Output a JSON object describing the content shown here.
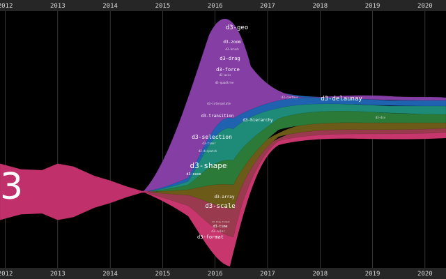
{
  "chart_data": {
    "type": "area",
    "subtype": "streamgraph",
    "x_ticks": [
      "2012",
      "2013",
      "2014",
      "2015",
      "2016",
      "2017",
      "2018",
      "2019",
      "2020"
    ],
    "xlim": [
      2011.9,
      2020.4
    ],
    "grid": true,
    "background": "#000000",
    "legend": "none",
    "series": [
      {
        "name": "d3",
        "color": "#c0306a",
        "labeled": true,
        "x": [
          2011.9,
          2012.3,
          2012.7,
          2013.0,
          2013.3,
          2013.7,
          2014.0,
          2014.3,
          2014.6,
          2014.9
        ],
        "values": [
          30,
          24,
          23,
          30,
          27,
          17,
          12,
          6,
          1,
          0
        ]
      },
      {
        "name": "d3-format",
        "color": "#c83a72",
        "labeled": true,
        "x": [],
        "values": []
      },
      {
        "name": "d3-scale",
        "color": "#a83a52",
        "labeled": true,
        "x": [],
        "values": []
      },
      {
        "name": "d3-time",
        "color": "#8e2a38",
        "labeled": true,
        "x": [],
        "values": []
      },
      {
        "name": "d3-array",
        "color": "#7a4a22",
        "labeled": true,
        "x": [],
        "values": []
      },
      {
        "name": "d3-shape",
        "color": "#6e5a1c",
        "labeled": true,
        "x": [],
        "values": []
      },
      {
        "name": "d3-selection",
        "color": "#2a7a3a",
        "labeled": true,
        "x": [],
        "values": []
      },
      {
        "name": "d3-transition",
        "color": "#1f8a78",
        "labeled": true,
        "x": [],
        "values": []
      },
      {
        "name": "d3-hierarchy",
        "color": "#17706a",
        "labeled": true,
        "x": [],
        "values": []
      },
      {
        "name": "d3-force",
        "color": "#1e6aa8",
        "labeled": true,
        "x": [],
        "values": []
      },
      {
        "name": "d3-drag",
        "color": "#2a5ec0",
        "labeled": true,
        "x": [],
        "values": []
      },
      {
        "name": "d3-zoom",
        "color": "#3b4fc8",
        "labeled": true,
        "x": [],
        "values": []
      },
      {
        "name": "d3-delaunay",
        "color": "#7a3c98",
        "labeled": true,
        "x": [],
        "values": []
      },
      {
        "name": "d3-geo",
        "color": "#8a3ea6",
        "labeled": true,
        "x": [],
        "values": []
      }
    ],
    "labels": [
      {
        "text": "d3",
        "size": "huge"
      },
      {
        "text": "d3-geo",
        "size": "medium"
      },
      {
        "text": "d3-zoom",
        "size": "small"
      },
      {
        "text": "d3-brush",
        "size": "tiny"
      },
      {
        "text": "d3-drag",
        "size": "small"
      },
      {
        "text": "d3-force",
        "size": "small"
      },
      {
        "text": "d3-axis",
        "size": "tiny"
      },
      {
        "text": "d3-quadtree",
        "size": "tiny"
      },
      {
        "text": "d3-interpolate",
        "size": "tiny"
      },
      {
        "text": "d3-transition",
        "size": "small"
      },
      {
        "text": "d3-hierarchy",
        "size": "small"
      },
      {
        "text": "d3-selection",
        "size": "medium"
      },
      {
        "text": "d3-timer",
        "size": "tiny"
      },
      {
        "text": "d3-dispatch",
        "size": "tiny"
      },
      {
        "text": "d3-shape",
        "size": "large"
      },
      {
        "text": "d3-ease",
        "size": "tiny"
      },
      {
        "text": "d3-array",
        "size": "small"
      },
      {
        "text": "d3-scale",
        "size": "medium"
      },
      {
        "text": "d3-time-format",
        "size": "tiny"
      },
      {
        "text": "d3-time",
        "size": "tiny"
      },
      {
        "text": "d3-color",
        "size": "tiny"
      },
      {
        "text": "d3-format",
        "size": "small"
      },
      {
        "text": "d3-delaunay",
        "size": "medium"
      },
      {
        "text": "d3-contour",
        "size": "tiny"
      },
      {
        "text": "d3-dsv",
        "size": "tiny"
      }
    ]
  }
}
